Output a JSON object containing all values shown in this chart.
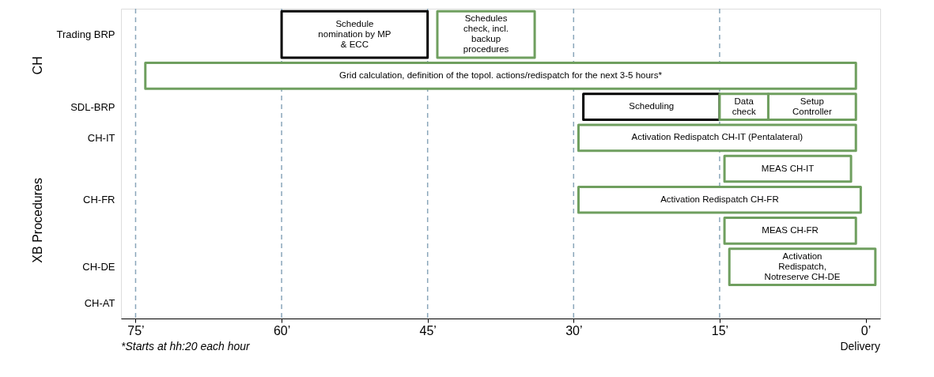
{
  "chart_data": {
    "type": "bar",
    "orientation": "horizontal",
    "categories": [
      "Trading BRP",
      null,
      "SDL-BRP",
      "CH-IT",
      null,
      "CH-FR",
      null,
      "CH-DE",
      "CH-AT"
    ],
    "series": [
      {
        "color": "#000000",
        "base": [
          45,
          null,
          15,
          null,
          null,
          null,
          null,
          null,
          null
        ],
        "values": [
          15,
          null,
          14,
          null,
          null,
          null,
          null,
          null,
          null
        ],
        "value_labels": [
          "Schedule\nnomination by MP\n& ECC",
          null,
          "Scheduling",
          null,
          null,
          null,
          null,
          null,
          null
        ]
      },
      {
        "color": "#6f9f5f",
        "base": [
          34,
          1,
          10,
          1,
          1.5,
          0.5,
          1,
          -1,
          null
        ],
        "values": [
          10,
          73,
          5,
          28.5,
          13,
          29,
          13.5,
          15,
          null
        ],
        "value_labels": [
          "Schedules\ncheck, incl.\nbackup\nprocedures",
          "Grid calculation, definition of the topol. actions/redispatch for the next 3-5 hours*",
          "Data\ncheck",
          "Activation Redispatch CH-IT (Pentalateral)",
          "MEAS CH-IT",
          "Activation Redispatch CH-FR",
          "MEAS CH-FR",
          "Activation\nRedispatch,\nNotreserve CH-DE",
          null
        ]
      },
      {
        "color": "#6f9f5f",
        "base": [
          null,
          null,
          1,
          null,
          null,
          null,
          null,
          null,
          null
        ],
        "values": [
          null,
          null,
          9,
          null,
          null,
          null,
          null,
          null,
          null
        ],
        "value_labels": [
          null,
          null,
          "Setup\nController",
          null,
          null,
          null,
          null,
          null,
          null
        ]
      }
    ],
    "xlim": [
      76.5,
      -1.5
    ],
    "xticks": [
      {
        "value": 75,
        "label": "75’"
      },
      {
        "value": 60,
        "label": "60’"
      },
      {
        "value": 45,
        "label": "45’"
      },
      {
        "value": 30,
        "label": "30’"
      },
      {
        "value": 15,
        "label": "15’"
      },
      {
        "value": 0,
        "label": "0’"
      }
    ],
    "ref_lines": [
      {
        "axis": "x",
        "value": 75,
        "color": "#8aa6ba",
        "line_style": "dashed"
      },
      {
        "axis": "x",
        "value": 60,
        "color": "#8aa6ba",
        "line_style": "dashed"
      },
      {
        "axis": "x",
        "value": 45,
        "color": "#8aa6ba",
        "line_style": "dashed"
      },
      {
        "axis": "x",
        "value": 30,
        "color": "#8aa6ba",
        "line_style": "dashed"
      },
      {
        "axis": "x",
        "value": 15,
        "color": "#8aa6ba",
        "line_style": "dashed"
      }
    ],
    "annotations": [
      "CH",
      "XB Procedures",
      "*Starts at hh:20 each hour",
      "Delivery"
    ],
    "grid": false,
    "legend": false
  }
}
